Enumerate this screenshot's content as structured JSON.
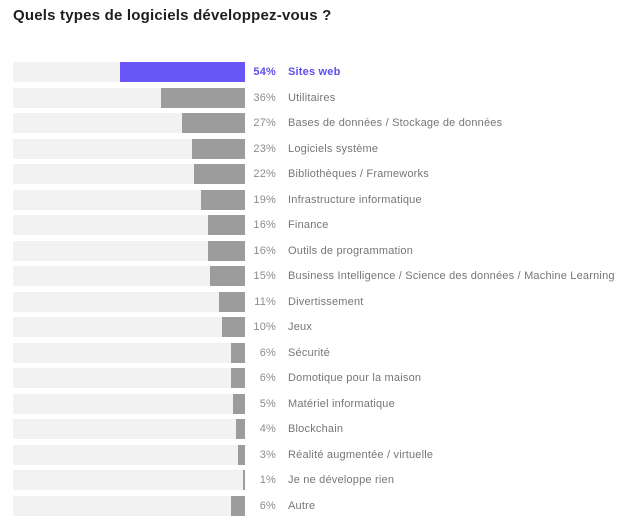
{
  "title": "Quels types de logiciels développez-vous ?",
  "colors": {
    "highlight_bar": "#6657F6",
    "highlight_text": "#5F4EF0",
    "bar": "#9C9C9C",
    "track": "#F2F2F2",
    "title_text": "#1E1E1E",
    "value_text": "#8C8C8C",
    "label_text": "#767676"
  },
  "chart_data": {
    "type": "bar",
    "orientation": "horizontal",
    "bar_alignment": "right",
    "title": "Quels types de logiciels développez-vous ?",
    "unit": "%",
    "xlim": [
      0,
      100
    ],
    "grid": false,
    "legend": false,
    "highlighted_index": 0,
    "categories": [
      "Sites web",
      "Utilitaires",
      "Bases de données / Stockage de données",
      "Logiciels système",
      "Bibliothèques / Frameworks",
      "Infrastructure informatique",
      "Finance",
      "Outils de programmation",
      "Business Intelligence / Science des données / Machine Learning",
      "Divertissement",
      "Jeux",
      "Sécurité",
      "Domotique pour la maison",
      "Matériel informatique",
      "Blockchain",
      "Réalité augmentée / virtuelle",
      "Je ne développe rien",
      "Autre"
    ],
    "values": [
      54,
      36,
      27,
      23,
      22,
      19,
      16,
      16,
      15,
      11,
      10,
      6,
      6,
      5,
      4,
      3,
      1,
      6
    ]
  }
}
